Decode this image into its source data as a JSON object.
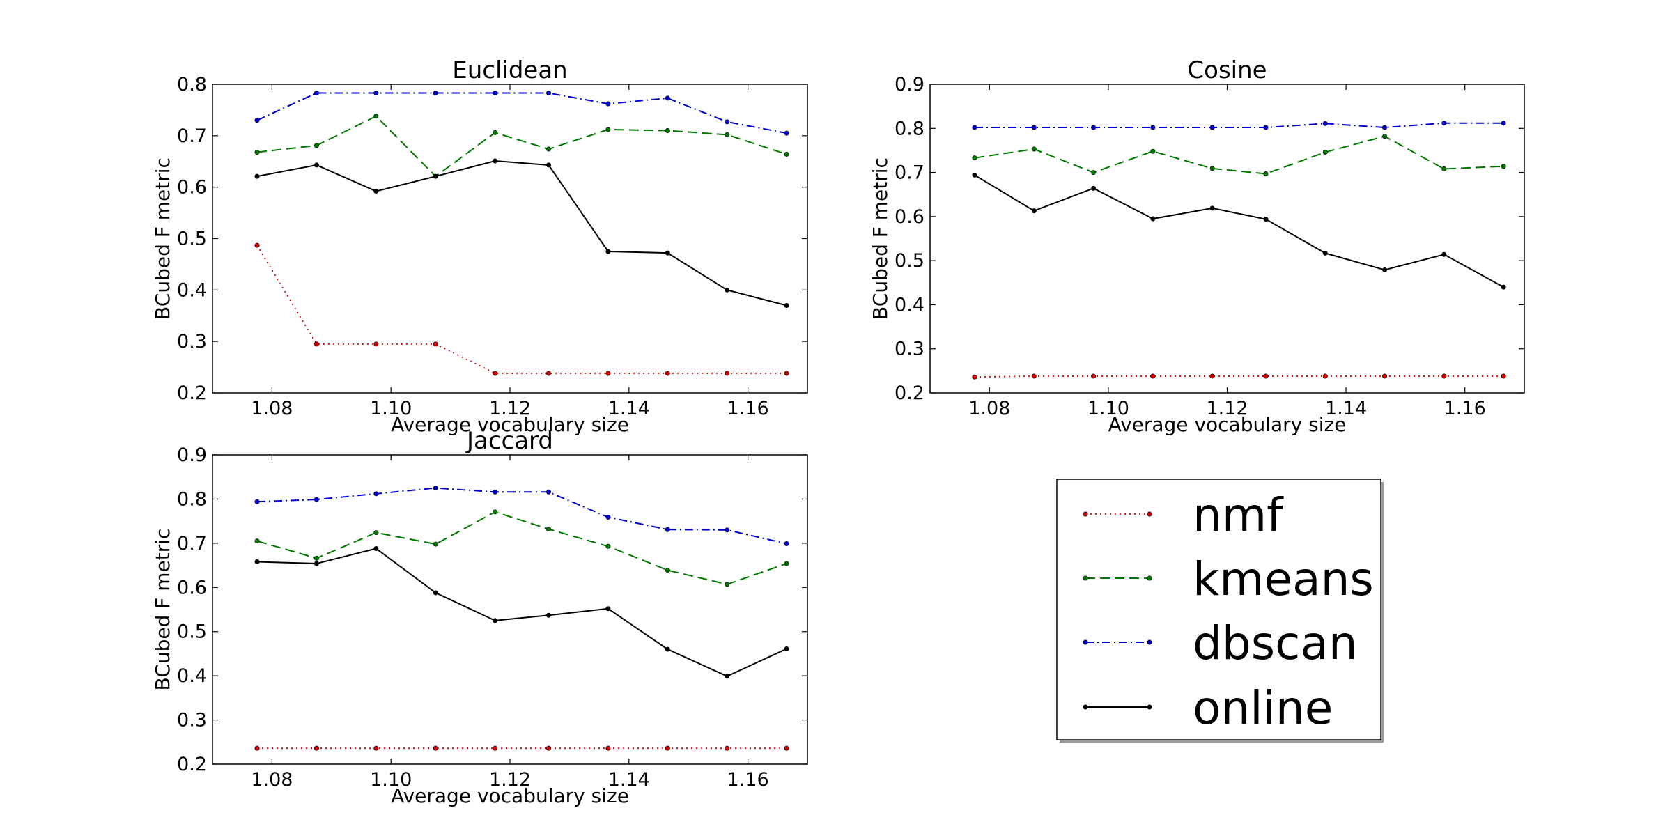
{
  "chart_data": [
    {
      "type": "line",
      "title": "Euclidean",
      "xlabel": "Average vocabulary size",
      "ylabel": "BCubed F metric",
      "xlim": [
        1.07,
        1.17
      ],
      "ylim": [
        0.2,
        0.8
      ],
      "xticks": [
        "1.08",
        "1.10",
        "1.12",
        "1.14",
        "1.16"
      ],
      "yticks": [
        "0.2",
        "0.3",
        "0.4",
        "0.5",
        "0.6",
        "0.7",
        "0.8"
      ],
      "x": [
        1.0775,
        1.0875,
        1.0975,
        1.1075,
        1.1175,
        1.1265,
        1.1365,
        1.1465,
        1.1565,
        1.1665
      ],
      "series": [
        {
          "name": "nmf",
          "values": [
            0.487,
            0.295,
            0.295,
            0.295,
            0.238,
            0.238,
            0.238,
            0.238,
            0.238,
            0.238
          ]
        },
        {
          "name": "kmeans",
          "values": [
            0.668,
            0.681,
            0.738,
            0.621,
            0.706,
            0.674,
            0.712,
            0.71,
            0.702,
            0.664
          ]
        },
        {
          "name": "dbscan",
          "values": [
            0.73,
            0.783,
            0.783,
            0.783,
            0.783,
            0.783,
            0.762,
            0.773,
            0.727,
            0.705
          ]
        },
        {
          "name": "online",
          "values": [
            0.621,
            0.643,
            0.592,
            0.621,
            0.651,
            0.643,
            0.475,
            0.472,
            0.4,
            0.37
          ]
        }
      ]
    },
    {
      "type": "line",
      "title": "Cosine",
      "xlabel": "Average vocabulary size",
      "ylabel": "BCubed F metric",
      "xlim": [
        1.07,
        1.17
      ],
      "ylim": [
        0.2,
        0.9
      ],
      "xticks": [
        "1.08",
        "1.10",
        "1.12",
        "1.14",
        "1.16"
      ],
      "yticks": [
        "0.2",
        "0.3",
        "0.4",
        "0.5",
        "0.6",
        "0.7",
        "0.8",
        "0.9"
      ],
      "x": [
        1.0775,
        1.0875,
        1.0975,
        1.1075,
        1.1175,
        1.1265,
        1.1365,
        1.1465,
        1.1565,
        1.1665
      ],
      "series": [
        {
          "name": "nmf",
          "values": [
            0.236,
            0.238,
            0.238,
            0.238,
            0.238,
            0.238,
            0.238,
            0.238,
            0.238,
            0.238
          ]
        },
        {
          "name": "kmeans",
          "values": [
            0.733,
            0.753,
            0.7,
            0.748,
            0.709,
            0.697,
            0.746,
            0.782,
            0.708,
            0.714
          ]
        },
        {
          "name": "dbscan",
          "values": [
            0.802,
            0.802,
            0.802,
            0.802,
            0.802,
            0.802,
            0.811,
            0.802,
            0.812,
            0.812
          ]
        },
        {
          "name": "online",
          "values": [
            0.694,
            0.613,
            0.664,
            0.595,
            0.619,
            0.594,
            0.517,
            0.479,
            0.514,
            0.44
          ]
        }
      ]
    },
    {
      "type": "line",
      "title": "Jaccard",
      "xlabel": "Average vocabulary size",
      "ylabel": "BCubed F metric",
      "xlim": [
        1.07,
        1.17
      ],
      "ylim": [
        0.2,
        0.9
      ],
      "xticks": [
        "1.08",
        "1.10",
        "1.12",
        "1.14",
        "1.16"
      ],
      "yticks": [
        "0.2",
        "0.3",
        "0.4",
        "0.5",
        "0.6",
        "0.7",
        "0.8",
        "0.9"
      ],
      "x": [
        1.0775,
        1.0875,
        1.0975,
        1.1075,
        1.1175,
        1.1265,
        1.1365,
        1.1465,
        1.1565,
        1.1665
      ],
      "series": [
        {
          "name": "nmf",
          "values": [
            0.236,
            0.236,
            0.236,
            0.236,
            0.236,
            0.236,
            0.236,
            0.236,
            0.236,
            0.236
          ]
        },
        {
          "name": "kmeans",
          "values": [
            0.705,
            0.666,
            0.724,
            0.698,
            0.771,
            0.732,
            0.693,
            0.639,
            0.607,
            0.654
          ]
        },
        {
          "name": "dbscan",
          "values": [
            0.794,
            0.799,
            0.812,
            0.825,
            0.816,
            0.816,
            0.759,
            0.731,
            0.73,
            0.699
          ]
        },
        {
          "name": "online",
          "values": [
            0.658,
            0.654,
            0.688,
            0.588,
            0.525,
            0.537,
            0.552,
            0.46,
            0.399,
            0.461
          ]
        }
      ]
    }
  ],
  "legend": {
    "placement": "bottom-right",
    "entries": [
      {
        "name": "nmf",
        "color": "#d00000",
        "dash": "dotted"
      },
      {
        "name": "kmeans",
        "color": "#007800",
        "dash": "dashed"
      },
      {
        "name": "dbscan",
        "color": "#0000d0",
        "dash": "dashdot"
      },
      {
        "name": "online",
        "color": "#000000",
        "dash": "solid"
      }
    ]
  }
}
